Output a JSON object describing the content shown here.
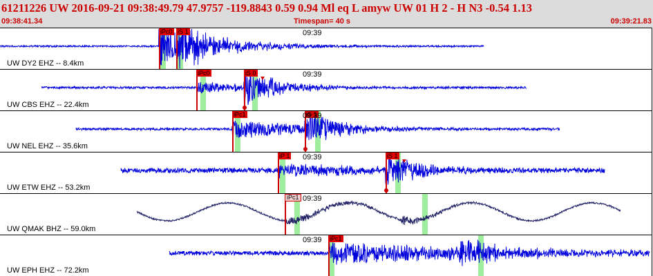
{
  "header": {
    "title": "61211226 UW 2016-09-21 09:38:49.79   47.9757 -119.8843   0.59  0.94 Ml  eq  L amyw     UW 01  H   2  -  H N3   -0.54  1.13",
    "start_time": "09:38:41.34",
    "timespan": "Timespan=  40 s",
    "end_time": "09:39:21.83"
  },
  "colors": {
    "trace": "#0000dd",
    "trace_long_period": "#222266",
    "pick": "#cc0000",
    "band": "#7ee87e",
    "header_bg": "#dcdcdc",
    "header_text": "#cc0000"
  },
  "traces": [
    {
      "label": "UW DY2 EHZ -- 8.4km",
      "time_mark": "09:39",
      "type": "sp",
      "start_x": 0,
      "end_x": 700,
      "onset_x": 230,
      "decay": 0.012,
      "noise": 1.2,
      "amp": 30,
      "s_x": 255,
      "s_amp": 26,
      "bands": [
        232,
        257
      ],
      "picks": [
        {
          "label": "iPc0",
          "x": 230,
          "style": "red",
          "arrow": false,
          "dot": false
        },
        {
          "label": "iS 1",
          "x": 255,
          "style": "red",
          "arrow": false,
          "dot": false
        }
      ]
    },
    {
      "label": "UW CBS EHZ -- 22.4km",
      "time_mark": "09:39",
      "type": "sp",
      "start_x": 60,
      "end_x": 762,
      "onset_x": 285,
      "decay": 0.01,
      "noise": 1.5,
      "amp": 8,
      "s_x": 353,
      "s_amp": 26,
      "bands": [
        290,
        365
      ],
      "picks": [
        {
          "label": "iPc0",
          "x": 284,
          "style": "red",
          "arrow": false,
          "dot": false
        },
        {
          "label": "iS 0",
          "x": 353,
          "style": "red",
          "arrow": true,
          "dot": true
        }
      ]
    },
    {
      "label": "UW NEL EHZ -- 35.6km",
      "time_mark": "09:39",
      "type": "sp",
      "start_x": 110,
      "end_x": 810,
      "onset_x": 336,
      "decay": 0.008,
      "noise": 1.6,
      "amp": 14,
      "s_x": 441,
      "s_amp": 24,
      "bands": [
        340,
        456
      ],
      "picks": [
        {
          "label": "iPc1",
          "x": 336,
          "style": "red",
          "arrow": false,
          "dot": false
        },
        {
          "label": "iS 1",
          "x": 441,
          "style": "red",
          "arrow": false,
          "dot": true
        }
      ]
    },
    {
      "label": "UW ETW EHZ -- 53.2km",
      "time_mark": "09:39",
      "type": "sp",
      "start_x": 175,
      "end_x": 875,
      "onset_x": 403,
      "decay": 0.007,
      "noise": 3.5,
      "amp": 9,
      "s_x": 558,
      "s_amp": 24,
      "bands": [
        405,
        572
      ],
      "picks": [
        {
          "label": "iP 1",
          "x": 402,
          "style": "red",
          "arrow": false,
          "dot": false
        },
        {
          "label": "iS 1",
          "x": 558,
          "style": "red",
          "arrow": true,
          "dot": true
        }
      ]
    },
    {
      "label": "UW QMAK BHZ -- 59.0km",
      "time_mark": "09:39",
      "type": "lp",
      "start_x": 198,
      "end_x": 898,
      "onset_x": 412,
      "decay": 0.01,
      "noise": 1.2,
      "amp": 6,
      "s_x": 580,
      "s_amp": 6,
      "bands": [
        426,
        611
      ],
      "picks": [
        {
          "label": "iPc1",
          "x": 412,
          "style": "open",
          "arrow": false,
          "dot": false
        }
      ]
    },
    {
      "label": "UW EPH EHZ -- 72.2km",
      "time_mark": "09:39",
      "type": "sp",
      "start_x": 245,
      "end_x": 940,
      "onset_x": 475,
      "decay": 0.004,
      "noise": 3,
      "amp": 16,
      "s_x": 665,
      "s_amp": 20,
      "bands": [
        476,
        692
      ],
      "picks": [
        {
          "label": "iPc1",
          "x": 475,
          "style": "red",
          "arrow": false,
          "dot": false
        }
      ]
    }
  ]
}
